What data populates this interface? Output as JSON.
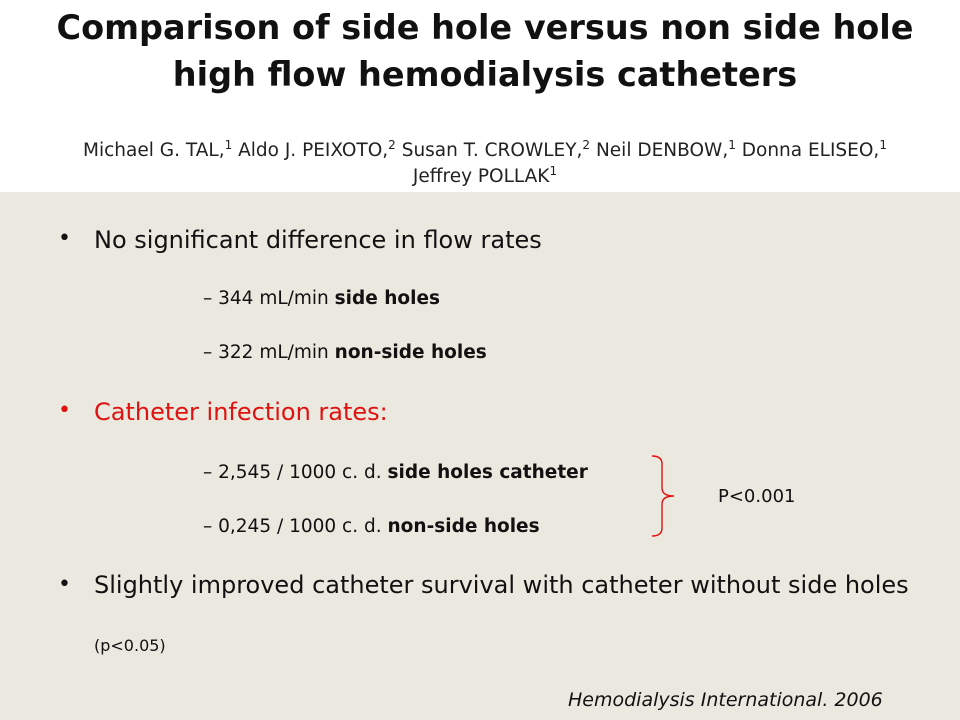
{
  "header": {
    "title": "Comparison of side hole versus non side hole high flow hemodialysis catheters",
    "authors": [
      {
        "name": "Michael G. TAL,",
        "sup": "1"
      },
      {
        "name": "Aldo J. PEIXOTO,",
        "sup": "2"
      },
      {
        "name": "Susan T. CROWLEY,",
        "sup": "2"
      },
      {
        "name": "Neil DENBOW,",
        "sup": "1"
      },
      {
        "name": "Donna ELISEO,",
        "sup": "1"
      },
      {
        "name": "Jeffrey POLLAK",
        "sup": "1"
      }
    ]
  },
  "bullets": {
    "flow": {
      "text": "No significant difference in flow rates",
      "items": [
        {
          "value": "344 mL/min",
          "label": "side holes"
        },
        {
          "value": "322 mL/min",
          "label": "non-side holes"
        }
      ]
    },
    "infection": {
      "text": "Catheter infection rates:",
      "color": "#e0120f",
      "items": [
        {
          "value": "2,545 / 1000 c. d.",
          "label": "side holes catheter"
        },
        {
          "value": "0,245 / 1000 c. d.",
          "label": "non-side holes"
        }
      ],
      "p_value": "P<0.001"
    },
    "survival": {
      "text": "Slightly improved catheter survival with  catheter without side holes",
      "p_value": "(p<0.05)"
    }
  },
  "bullet_symbol": "•",
  "dash_symbol": "–",
  "citation": "Hemodialysis International. 2006"
}
